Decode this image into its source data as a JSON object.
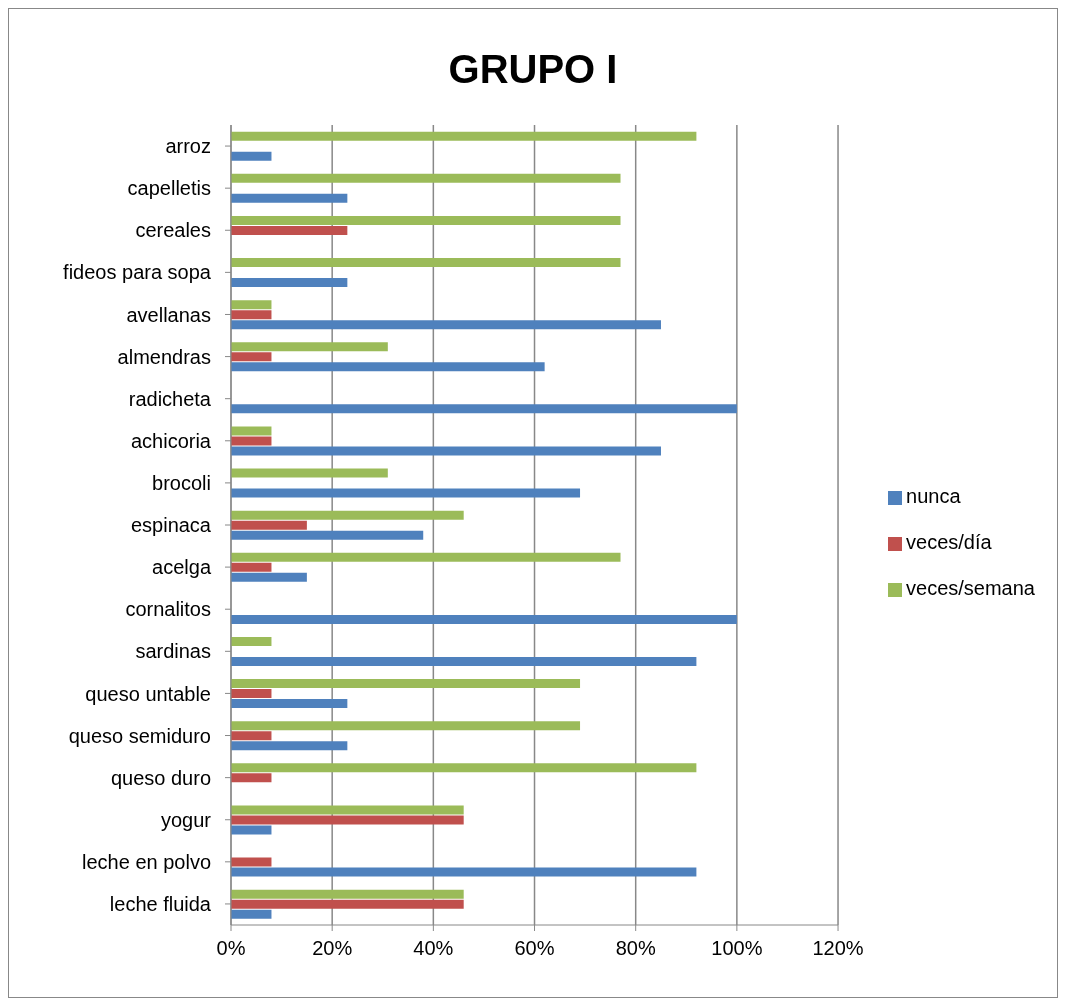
{
  "chart_data": {
    "type": "bar",
    "title": "GRUPO I",
    "orientation": "horizontal",
    "categories": [
      "arroz",
      "capelletis",
      "cereales",
      "fideos para sopa",
      "avellanas",
      "almendras",
      "radicheta",
      "achicoria",
      "brocoli",
      "espinaca",
      "acelga",
      "cornalitos",
      "sardinas",
      "queso untable",
      "queso semiduro",
      "queso duro",
      "yogur",
      "leche en polvo",
      "leche fluida"
    ],
    "series": [
      {
        "name": "veces/semana",
        "color": "#9bbb59",
        "values": [
          92,
          77,
          77,
          77,
          8,
          31,
          0,
          8,
          31,
          46,
          77,
          0,
          8,
          69,
          69,
          92,
          46,
          0,
          46
        ]
      },
      {
        "name": "veces/día",
        "color": "#c0504d",
        "values": [
          0,
          0,
          23,
          0,
          8,
          8,
          0,
          8,
          0,
          15,
          8,
          0,
          0,
          8,
          8,
          8,
          46,
          8,
          46
        ]
      },
      {
        "name": "nunca",
        "color": "#4f81bd",
        "values": [
          8,
          23,
          0,
          23,
          85,
          62,
          100,
          85,
          69,
          38,
          15,
          100,
          92,
          23,
          23,
          0,
          8,
          92,
          8
        ]
      }
    ],
    "xlim": [
      0,
      120
    ],
    "xticks": [
      {
        "value": 0,
        "label": "0%"
      },
      {
        "value": 20,
        "label": "20%"
      },
      {
        "value": 40,
        "label": "40%"
      },
      {
        "value": 60,
        "label": "60%"
      },
      {
        "value": 80,
        "label": "80%"
      },
      {
        "value": 100,
        "label": "100%"
      },
      {
        "value": 120,
        "label": "120%"
      }
    ],
    "grid": "x",
    "legend": "right"
  }
}
